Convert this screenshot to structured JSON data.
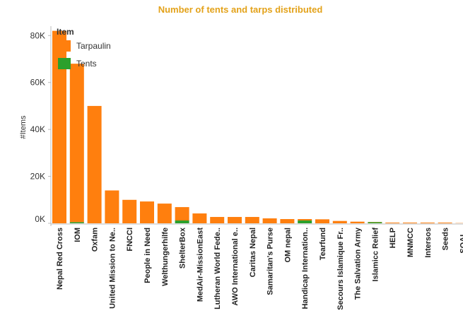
{
  "chart_data": {
    "type": "stacked_bar",
    "title": "Number of tents and tarps distributed",
    "y_label": "#Items",
    "legend_title": "Item",
    "categories": [
      "Nepal Red Cross",
      "IOM",
      "Oxfam",
      "United Mission to Ne..",
      "FNCCI",
      "People in Need",
      "Welthungerhilfe",
      "ShelterBox",
      "MedAir-MissionEast",
      "Lutheran World Fede..",
      "AWO International e..",
      "Caritas Nepal",
      "Samaritan's Purse",
      "OM nepal",
      "Handicap Internation..",
      "Tearfund",
      "Secours Islamique Fr..",
      "The Salvation Army",
      "Islamicc Relief",
      "HELP",
      "MNMCC",
      "Intersos",
      "Seeds",
      "SOAL.."
    ],
    "series": [
      {
        "name": "Tarpaulin",
        "color": "#ff7f0e",
        "values": [
          82000,
          67500,
          50000,
          14000,
          10000,
          9300,
          8400,
          5700,
          4200,
          2700,
          2700,
          2700,
          2100,
          1800,
          600,
          1700,
          1000,
          700,
          100,
          300,
          300,
          300,
          300,
          100
        ]
      },
      {
        "name": "Tents",
        "color": "#2ca02c",
        "values": [
          0,
          500,
          0,
          0,
          0,
          0,
          0,
          1200,
          0,
          0,
          0,
          0,
          0,
          0,
          1200,
          0,
          0,
          0,
          500,
          0,
          0,
          0,
          0,
          0
        ]
      }
    ],
    "ylim": [
      0,
      84000
    ],
    "yticks": [
      {
        "value": 0,
        "label": "0K"
      },
      {
        "value": 20000,
        "label": "20K"
      },
      {
        "value": 40000,
        "label": "40K"
      },
      {
        "value": 60000,
        "label": "60K"
      },
      {
        "value": 80000,
        "label": "80K"
      }
    ]
  }
}
